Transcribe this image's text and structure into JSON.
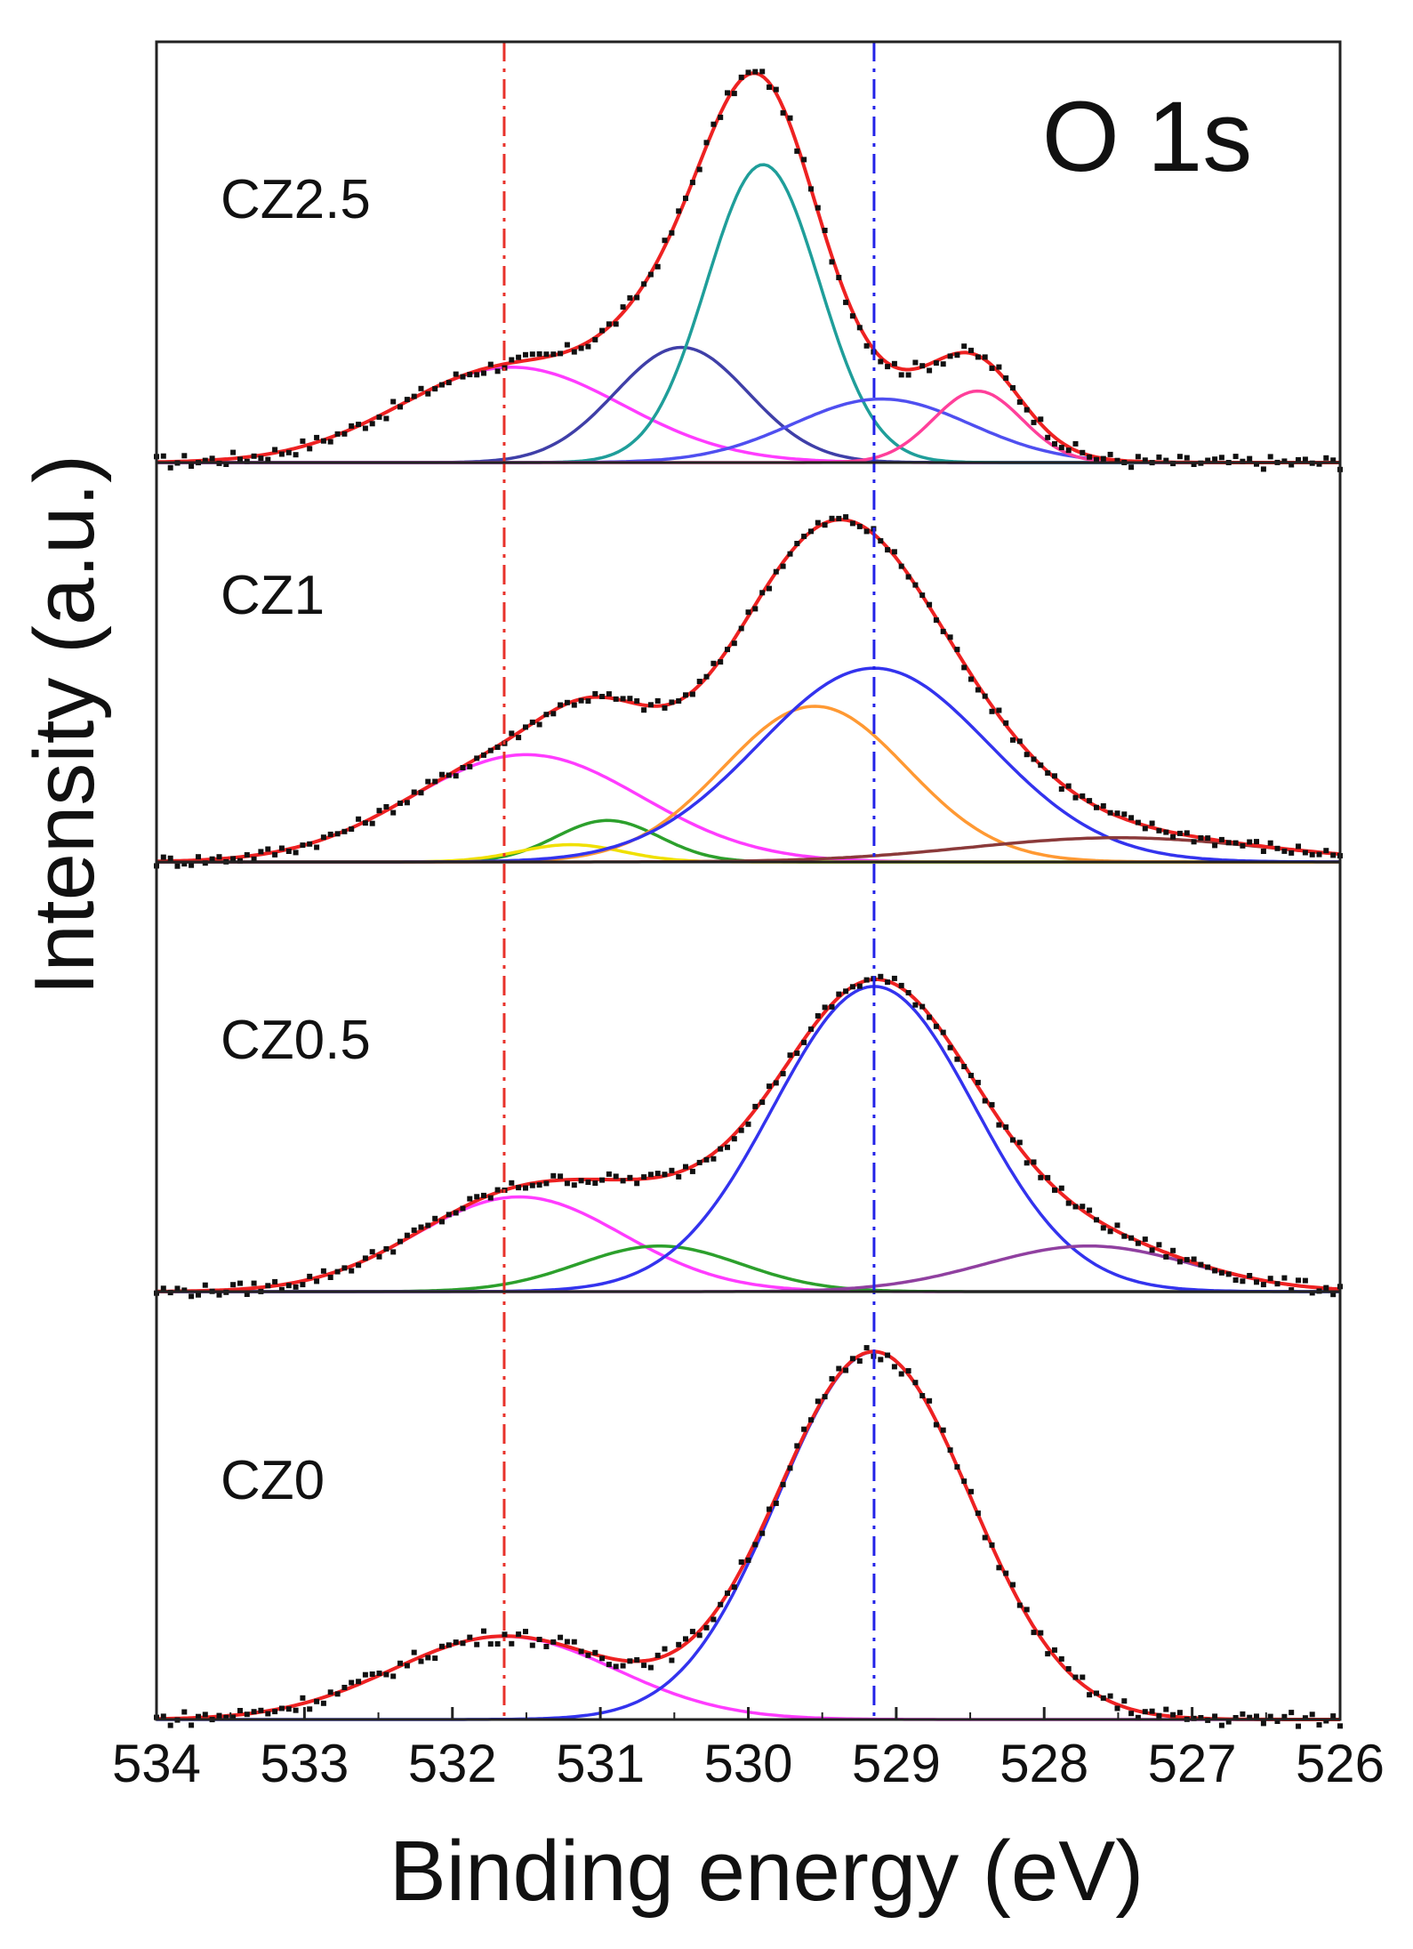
{
  "chart_data": {
    "type": "line",
    "title": "O 1s",
    "xlabel": "Binding energy (eV)",
    "ylabel": "Intensity (a.u.)",
    "xlim": [
      534,
      526
    ],
    "x_reversed": true,
    "x_ticks": [
      534,
      533,
      532,
      531,
      530,
      529,
      528,
      527,
      526
    ],
    "reference_lines": [
      {
        "x": 531.65,
        "color": "#e8322b",
        "style": "dash-dot"
      },
      {
        "x": 529.15,
        "color": "#2323e8",
        "style": "dash-dot"
      }
    ],
    "panels": [
      {
        "label": "CZ2.5",
        "ymax": 1.03,
        "components": [
          {
            "center": 531.6,
            "height": 0.24,
            "sigma": 0.75,
            "color": "#ff3cff"
          },
          {
            "center": 530.45,
            "height": 0.29,
            "sigma": 0.45,
            "color": "#3f3fa8"
          },
          {
            "center": 529.9,
            "height": 0.75,
            "sigma": 0.38,
            "color": "#1f9e9a"
          },
          {
            "center": 529.1,
            "height": 0.16,
            "sigma": 0.6,
            "color": "#4f4ff0"
          },
          {
            "center": 528.45,
            "height": 0.18,
            "sigma": 0.3,
            "color": "#ff3f9a"
          }
        ]
      },
      {
        "label": "CZ1",
        "ymax": 1.0,
        "components": [
          {
            "center": 531.5,
            "height": 0.31,
            "sigma": 0.78,
            "color": "#ff3cff"
          },
          {
            "center": 530.95,
            "height": 0.12,
            "sigma": 0.35,
            "color": "#2ca02c"
          },
          {
            "center": 531.2,
            "height": 0.05,
            "sigma": 0.35,
            "color": "#f0e000"
          },
          {
            "center": 529.55,
            "height": 0.45,
            "sigma": 0.62,
            "color": "#ff9933"
          },
          {
            "center": 529.15,
            "height": 0.56,
            "sigma": 0.78,
            "color": "#3333ee"
          },
          {
            "center": 527.5,
            "height": 0.07,
            "sigma": 1.0,
            "color": "#8b3a3a"
          }
        ]
      },
      {
        "label": "CZ0.5",
        "ymax": 1.07,
        "components": [
          {
            "center": 531.55,
            "height": 0.27,
            "sigma": 0.7,
            "color": "#ff3cff"
          },
          {
            "center": 530.6,
            "height": 0.13,
            "sigma": 0.55,
            "color": "#2ca02c"
          },
          {
            "center": 529.15,
            "height": 0.87,
            "sigma": 0.68,
            "color": "#3333ee"
          },
          {
            "center": 527.7,
            "height": 0.13,
            "sigma": 0.7,
            "color": "#9040a0"
          }
        ]
      },
      {
        "label": "CZ0",
        "ymax": 0.88,
        "components": [
          {
            "center": 531.65,
            "height": 0.19,
            "sigma": 0.75,
            "color": "#ff3cff"
          },
          {
            "center": 529.15,
            "height": 0.84,
            "sigma": 0.65,
            "color": "#3333ee"
          }
        ]
      }
    ]
  }
}
